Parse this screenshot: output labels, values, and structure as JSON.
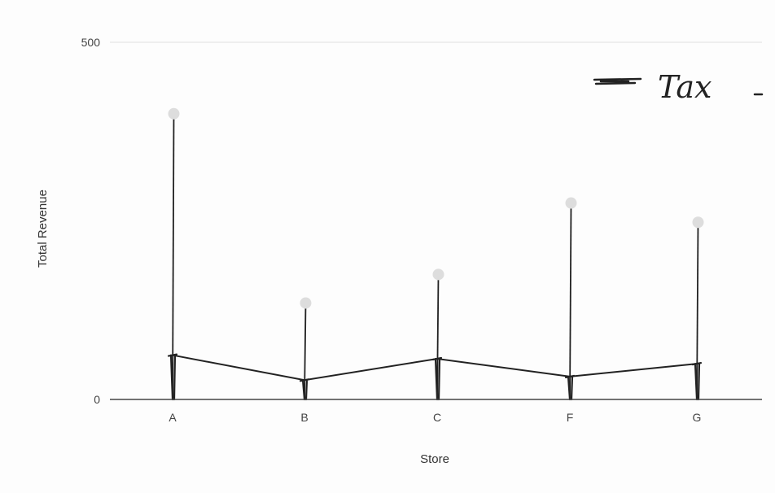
{
  "chart_data": {
    "type": "line",
    "title": "",
    "xlabel": "Store",
    "ylabel": "Total Revenue",
    "categories": [
      "A",
      "B",
      "C",
      "F",
      "G"
    ],
    "ylim": [
      0,
      500
    ],
    "yticks": [
      0,
      500
    ],
    "grid": false,
    "legend_position": "top-right",
    "series": [
      {
        "name": "",
        "style": "lollipop",
        "values": [
          400,
          135,
          175,
          275,
          248
        ]
      },
      {
        "name": "Tax",
        "style": "line",
        "values": [
          62,
          27,
          57,
          32,
          50
        ]
      }
    ],
    "colors": {
      "axis": "#444444",
      "stem": "#222222",
      "marker": "#dddddd",
      "tax_line": "#222222",
      "top_line": "#eeeeee"
    }
  }
}
